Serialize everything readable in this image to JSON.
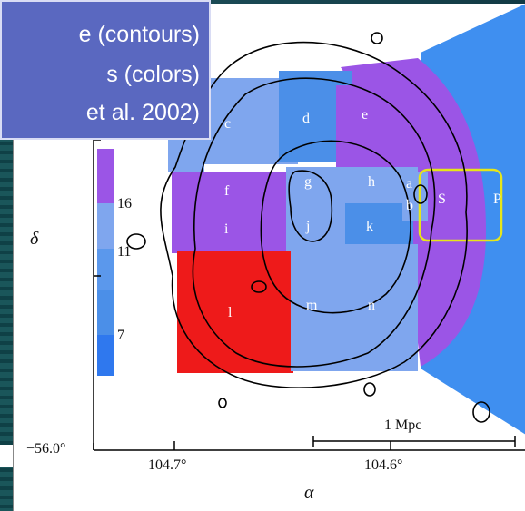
{
  "caption": {
    "line1": "e (contours)",
    "line2": "s (colors)",
    "line3": "et al. 2002)"
  },
  "axes": {
    "x_title": "α",
    "y_title": "δ",
    "x_ticks": [
      "104.7°",
      "104.6°"
    ],
    "y_ticks": [
      "−56.0°"
    ]
  },
  "colorbar": {
    "ticks": [
      "16",
      "11",
      "7"
    ]
  },
  "regions": [
    "c",
    "d",
    "e",
    "f",
    "g",
    "h",
    "a",
    "b",
    "S",
    "P",
    "i",
    "j",
    "k",
    "l",
    "m",
    "n"
  ],
  "scale_bar": {
    "label": "1 Mpc"
  },
  "colors": {
    "purple": "#9b55e6",
    "light_blue": "#7fa6ee",
    "mid_blue": "#4b8fe8",
    "red": "#ee1a1a",
    "bright_blue": "#3f8ff0",
    "highlight_box": "#e6e61a",
    "caption_bg": "#5a68c0"
  }
}
